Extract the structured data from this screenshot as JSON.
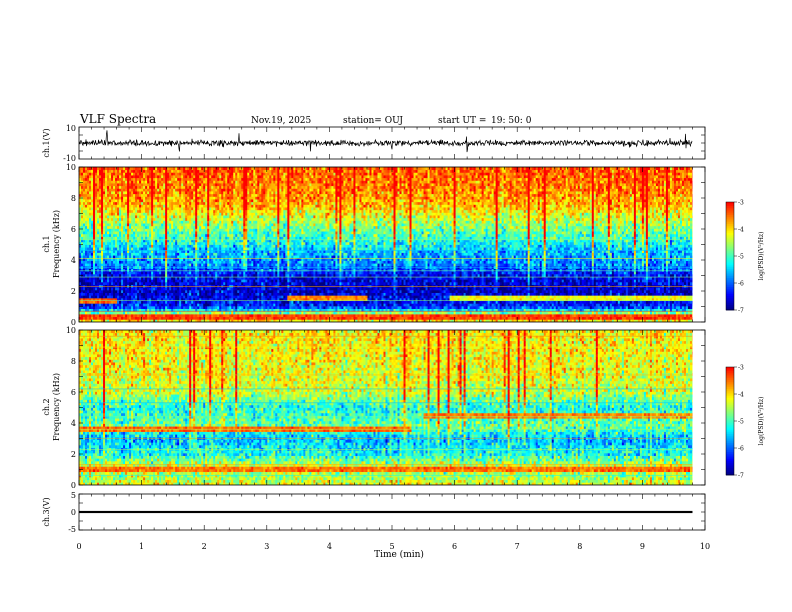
{
  "header": {
    "title": "VLF Spectra",
    "date": "Nov.19, 2025",
    "station": "station= OUJ",
    "start_label": "start  UT  =",
    "start_time": "19: 50: 0"
  },
  "chart_data": [
    {
      "id": "ch1-waveform",
      "type": "line",
      "ylabel": "ch.1(V)",
      "ylim": [
        -10,
        10
      ],
      "yticks": [
        "10",
        "-10"
      ],
      "xlim": [
        0,
        10
      ],
      "data_extent_min": [
        0,
        9.8
      ],
      "baseline_V": 0,
      "noise_amplitude_V": 1.5,
      "spike_times_min": [
        0.45,
        1.6,
        2.3,
        2.55,
        3.7,
        5.0,
        6.2,
        8.8,
        9.45,
        9.7
      ]
    },
    {
      "id": "ch1-spectrogram",
      "type": "heatmap",
      "ylabel_line1": "ch.1",
      "ylabel_line2": "Frequency  (kHz)",
      "ylim_kHz": [
        0,
        10
      ],
      "yticks": [
        "0",
        "2",
        "4",
        "6",
        "8",
        "10"
      ],
      "xlim_min": [
        0,
        10
      ],
      "data_extent_min": [
        0,
        9.8
      ],
      "colorbar": {
        "label": "log(PSD)(V²/Hz)",
        "range": [
          -7,
          -3
        ],
        "ticks": [
          "-3",
          "-4",
          "-5",
          "-6",
          "-7"
        ]
      },
      "profile_kHz_logpsd": [
        [
          0,
          -4.4
        ],
        [
          0.3,
          -3.4
        ],
        [
          0.5,
          -4.3
        ],
        [
          1,
          -6.3
        ],
        [
          2,
          -6.7
        ],
        [
          3,
          -6.5
        ],
        [
          3.6,
          -5.9
        ],
        [
          4.5,
          -5.6
        ],
        [
          5.5,
          -5.0
        ],
        [
          6.5,
          -4.5
        ],
        [
          7.5,
          -3.9
        ],
        [
          8.5,
          -3.6
        ],
        [
          10,
          -3.4
        ]
      ],
      "lines_kHz": [
        0.7,
        1.4,
        2.3,
        2.9,
        3.3,
        3.5,
        4.1,
        4.6,
        5.3
      ],
      "bands": [
        {
          "t0": 0.0,
          "t1": 0.6,
          "f": 1.35,
          "logpsd": -3.4
        },
        {
          "t0": 3.3,
          "t1": 4.6,
          "f": 1.4,
          "logpsd": -3.6
        },
        {
          "t0": 5.9,
          "t1": 9.8,
          "f": 1.5,
          "logpsd": -4.2
        },
        {
          "t0": 0.0,
          "t1": 9.8,
          "f": 0.2,
          "logpsd": -3.3
        }
      ]
    },
    {
      "id": "ch2-spectrogram",
      "type": "heatmap",
      "ylabel_line1": "ch.2",
      "ylabel_line2": "Frequency  (kHz)",
      "ylim_kHz": [
        0,
        10
      ],
      "yticks": [
        "0",
        "2",
        "4",
        "6",
        "8",
        "10"
      ],
      "xlim_min": [
        0,
        10
      ],
      "data_extent_min": [
        0,
        9.8
      ],
      "colorbar": {
        "label": "log(PSD)(V²/Hz)",
        "range": [
          -7,
          -3
        ],
        "ticks": [
          "-3",
          "-4",
          "-5",
          "-6",
          "-7"
        ]
      },
      "profile_kHz_logpsd": [
        [
          0,
          -4.2
        ],
        [
          0.5,
          -4.6
        ],
        [
          1.2,
          -4.3
        ],
        [
          2,
          -5.2
        ],
        [
          3,
          -5.6
        ],
        [
          3.8,
          -4.8
        ],
        [
          5,
          -5.2
        ],
        [
          6,
          -4.4
        ],
        [
          7.5,
          -4.2
        ],
        [
          10,
          -4.1
        ]
      ],
      "lines_kHz": [
        0.6,
        1.3,
        2.3,
        3.0,
        3.6,
        4.4,
        5.3,
        6.2,
        7.1,
        8.9,
        9.6
      ],
      "bands": [
        {
          "t0": 0.0,
          "t1": 9.8,
          "f": 0.9,
          "logpsd": -3.5
        },
        {
          "t0": 0.0,
          "t1": 5.3,
          "f": 3.6,
          "logpsd": -3.5
        },
        {
          "t0": 5.5,
          "t1": 9.8,
          "f": 4.4,
          "logpsd": -3.6
        }
      ]
    },
    {
      "id": "ch3-waveform",
      "type": "line",
      "ylabel": "ch.3(V)",
      "ylim": [
        -5,
        5
      ],
      "yticks": [
        "5",
        "0",
        "-5"
      ],
      "xlim": [
        0,
        10
      ],
      "data_extent_min": [
        0,
        9.8
      ],
      "value_V": 0,
      "noise_amplitude_V": 0.3
    }
  ],
  "time_axis": {
    "label": "Time  (min)",
    "ticks": [
      "0",
      "1",
      "2",
      "3",
      "4",
      "5",
      "6",
      "7",
      "8",
      "9",
      "10"
    ]
  },
  "colors": {
    "colormap": [
      "#00007f",
      "#0000ff",
      "#007fff",
      "#00ffff",
      "#7fff7f",
      "#ffff00",
      "#ff7f00",
      "#ff0000"
    ],
    "trace": "#000000"
  }
}
